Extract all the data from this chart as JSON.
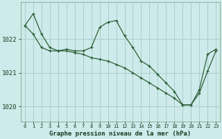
{
  "title": "Graphe pression niveau de la mer (hPa)",
  "bg_color": "#ceeaea",
  "grid_color": "#aacece",
  "line_color": "#2a5e35",
  "line1": [
    1022.4,
    1022.75,
    1022.15,
    1021.75,
    1021.65,
    1021.7,
    1021.65,
    1021.65,
    1021.75,
    1022.35,
    1022.5,
    1022.55,
    1022.1,
    1021.75,
    1021.35,
    1021.2,
    1020.95,
    1020.7,
    1020.45,
    1020.05,
    1020.05,
    1020.5,
    1021.55,
    1021.7
  ],
  "line2": [
    1022.4,
    1022.15,
    1021.75,
    1021.65,
    1021.65,
    1021.65,
    1021.6,
    1021.55,
    1021.45,
    1021.4,
    1021.35,
    1021.25,
    1021.15,
    1021.0,
    1020.85,
    1020.7,
    1020.55,
    1020.4,
    1020.25,
    1020.05,
    1020.05,
    1020.4,
    1021.05,
    1021.65
  ],
  "x_labels": [
    "0",
    "1",
    "2",
    "3",
    "4",
    "5",
    "6",
    "7",
    "8",
    "9",
    "10",
    "11",
    "12",
    "13",
    "14",
    "15",
    "16",
    "17",
    "18",
    "19",
    "20",
    "21",
    "22",
    "23"
  ],
  "yticks": [
    1020,
    1021,
    1022
  ],
  "ylim": [
    1019.55,
    1023.1
  ],
  "xlim": [
    -0.5,
    23.5
  ]
}
